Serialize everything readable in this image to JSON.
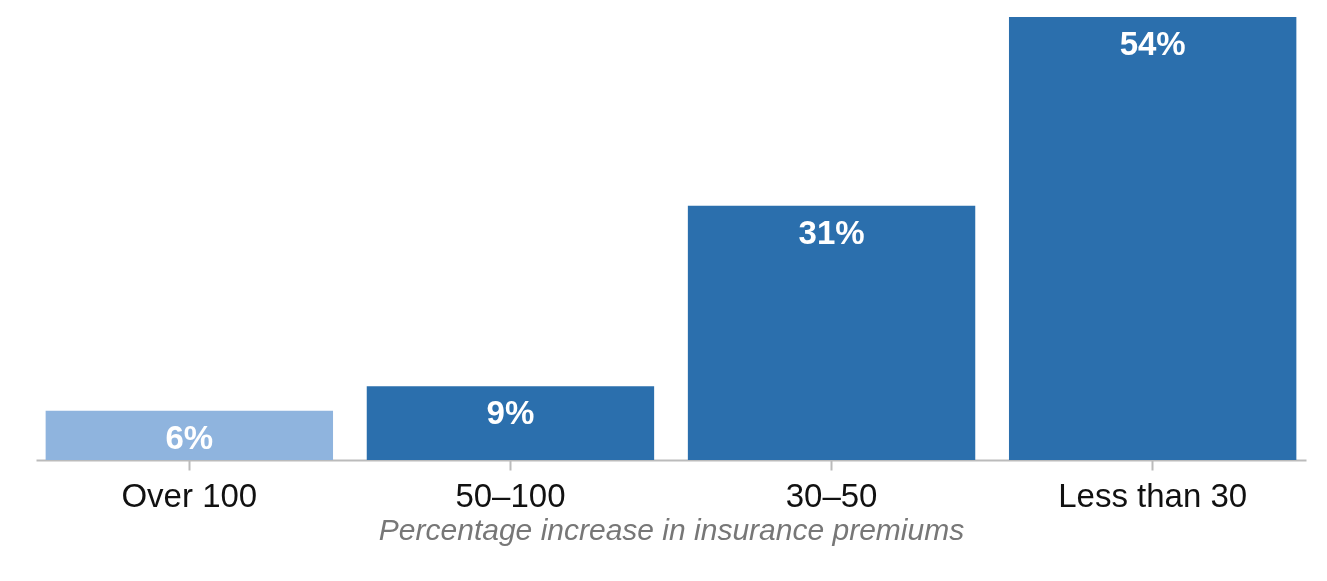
{
  "chart_data": {
    "type": "bar",
    "xlabel": "Percentage increase in insurance premiums",
    "categories": [
      "Over 100",
      "50–100",
      "30–50",
      "Less than 30"
    ],
    "values": [
      6,
      9,
      31,
      54
    ],
    "value_labels": [
      "6%",
      "9%",
      "31%",
      "54%"
    ],
    "colors": [
      "#8fb4de",
      "#2b6fad",
      "#2b6fad",
      "#2b6fad"
    ]
  }
}
